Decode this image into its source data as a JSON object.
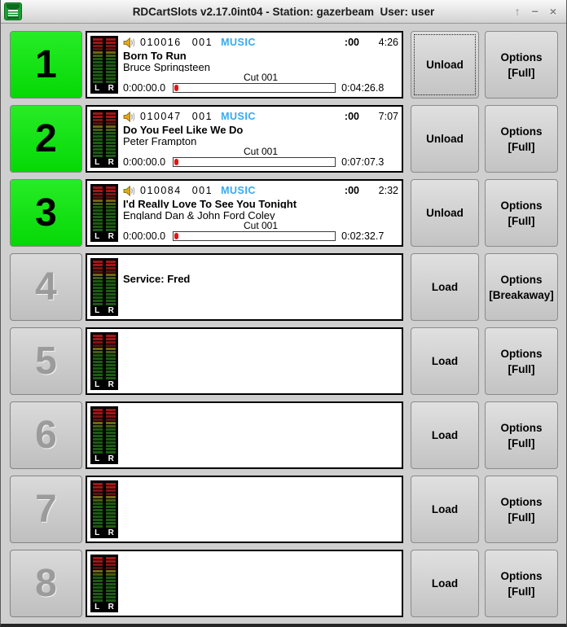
{
  "window": {
    "title": "RDCartSlots v2.17.0int04 - Station: gazerbeam  User: user",
    "controls": {
      "shade_glyph": "↑",
      "minimize_glyph": "−",
      "close_glyph": "×"
    }
  },
  "meter": {
    "left_label": "L",
    "right_label": "R",
    "segment_colors": [
      "#a31616",
      "#a31616",
      "#7d1616",
      "#581414",
      "#6f6614",
      "#475c14",
      "#1e5a14",
      "#1e5a14",
      "#1e5a14",
      "#1e5a14",
      "#1e5a14",
      "#1e5a14",
      "#1e5a14",
      "#1e5a14"
    ]
  },
  "colors": {
    "active_slot_green": "#0ce00c",
    "group_music_blue": "#35aaf0",
    "position_marker_red": "#e01515"
  },
  "slots": [
    {
      "number": "1",
      "state": "active",
      "loaded": true,
      "cart_number": "010016",
      "cut_number": "001",
      "group": "MUSIC",
      "talk_time": ":00",
      "length": "4:26",
      "title": "Born To Run",
      "artist": "Bruce Springsteen",
      "cut_label": "Cut 001",
      "elapsed": "0:00:00.0",
      "remaining": "0:04:26.8",
      "progress": 0,
      "action_label": "Unload",
      "options_label": "Options",
      "options_mode": "[Full]"
    },
    {
      "number": "2",
      "state": "active",
      "loaded": true,
      "cart_number": "010047",
      "cut_number": "001",
      "group": "MUSIC",
      "talk_time": ":00",
      "length": "7:07",
      "title": "Do You Feel Like We Do",
      "artist": "Peter Frampton",
      "cut_label": "Cut 001",
      "elapsed": "0:00:00.0",
      "remaining": "0:07:07.3",
      "progress": 0,
      "action_label": "Unload",
      "options_label": "Options",
      "options_mode": "[Full]"
    },
    {
      "number": "3",
      "state": "active",
      "loaded": true,
      "cart_number": "010084",
      "cut_number": "001",
      "group": "MUSIC",
      "talk_time": ":00",
      "length": "2:32",
      "title": "I'd Really Love To See You Tonight",
      "artist": "England Dan & John Ford Coley",
      "cut_label": "Cut 001",
      "elapsed": "0:00:00.0",
      "remaining": "0:02:32.7",
      "progress": 0,
      "action_label": "Unload",
      "options_label": "Options",
      "options_mode": "[Full]"
    },
    {
      "number": "4",
      "state": "inactive",
      "loaded": false,
      "service_label": "Service: Fred",
      "action_label": "Load",
      "options_label": "Options",
      "options_mode": "[Breakaway]"
    },
    {
      "number": "5",
      "state": "inactive",
      "loaded": false,
      "action_label": "Load",
      "options_label": "Options",
      "options_mode": "[Full]"
    },
    {
      "number": "6",
      "state": "inactive",
      "loaded": false,
      "action_label": "Load",
      "options_label": "Options",
      "options_mode": "[Full]"
    },
    {
      "number": "7",
      "state": "inactive",
      "loaded": false,
      "action_label": "Load",
      "options_label": "Options",
      "options_mode": "[Full]"
    },
    {
      "number": "8",
      "state": "inactive",
      "loaded": false,
      "action_label": "Load",
      "options_label": "Options",
      "options_mode": "[Full]"
    }
  ]
}
